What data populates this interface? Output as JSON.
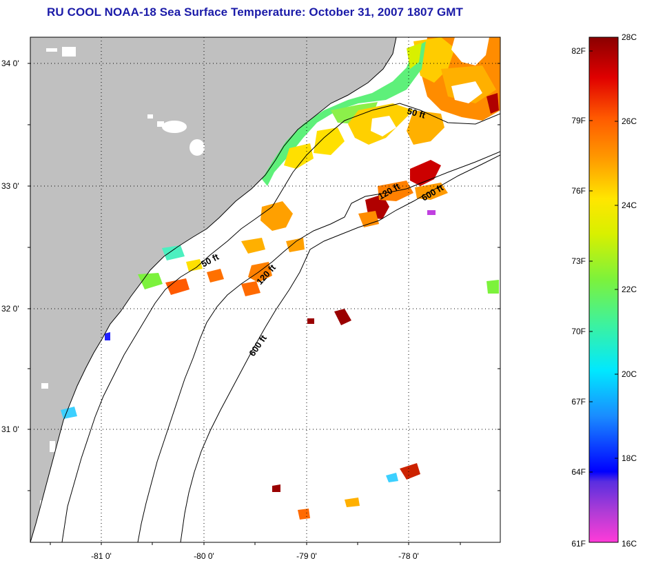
{
  "title": "RU COOL  NOAA-18  Sea Surface Temperature:  October 31, 2007 1807 GMT",
  "map": {
    "lon_labels": [
      "-81 0'",
      "-80 0'",
      "-79 0'",
      "-78 0'"
    ],
    "lat_labels": [
      "34 0'",
      "33 0'",
      "32 0'",
      "31 0'"
    ],
    "contours": [
      {
        "label": "50 ft"
      },
      {
        "label": "50 ft"
      },
      {
        "label": "120 ft"
      },
      {
        "label": "120 ft"
      },
      {
        "label": "600 ft"
      },
      {
        "label": "600 ft"
      }
    ],
    "land_color": "#c0c0c0",
    "ocean_color": "#ffffff"
  },
  "colorbar": {
    "fahrenheit_labels": [
      "82F",
      "79F",
      "76F",
      "73F",
      "70F",
      "67F",
      "64F",
      "61F"
    ],
    "celsius_labels": [
      "28C",
      "26C",
      "24C",
      "22C",
      "20C",
      "18C",
      "16C"
    ],
    "range_celsius": [
      16,
      28
    ],
    "stops": [
      {
        "c": 16,
        "color": "#ff3bd8"
      },
      {
        "c": 17,
        "color": "#8a3cd6"
      },
      {
        "c": 17.5,
        "color": "#0000ff"
      },
      {
        "c": 19,
        "color": "#1a8cff"
      },
      {
        "c": 20,
        "color": "#00e8ff"
      },
      {
        "c": 21,
        "color": "#3cf2a0"
      },
      {
        "c": 22,
        "color": "#7cf23c"
      },
      {
        "c": 23,
        "color": "#d8f000"
      },
      {
        "c": 24,
        "color": "#ffe600"
      },
      {
        "c": 25,
        "color": "#ff9a00"
      },
      {
        "c": 26,
        "color": "#ff5a00"
      },
      {
        "c": 27,
        "color": "#e00000"
      },
      {
        "c": 28,
        "color": "#8a0000"
      }
    ]
  }
}
